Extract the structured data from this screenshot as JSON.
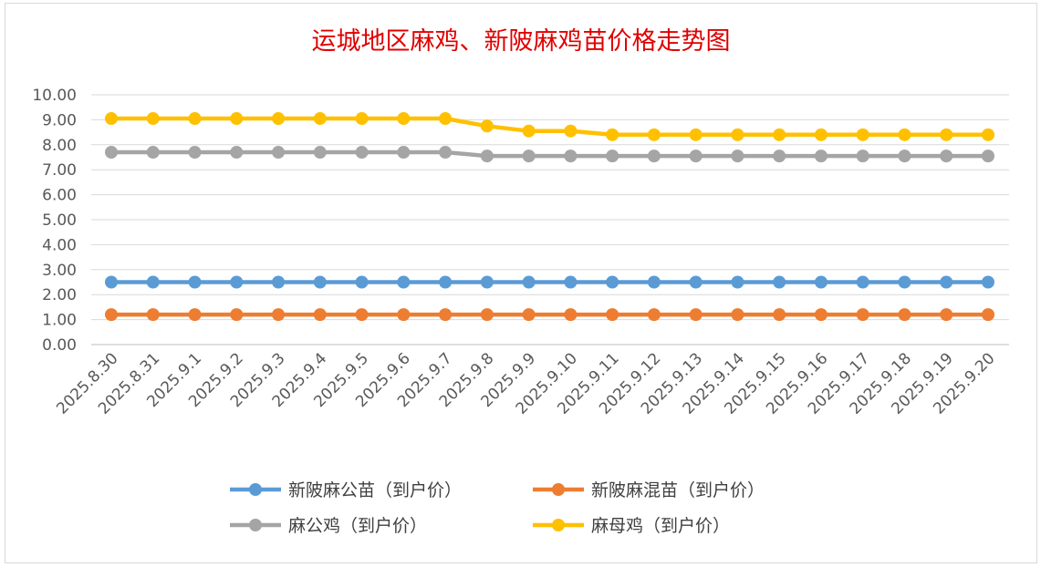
{
  "chart_data": {
    "type": "line",
    "title": "运城地区麻鸡、新陂麻鸡苗价格走势图",
    "xlabel": "",
    "ylabel": "",
    "ylim": [
      0,
      10
    ],
    "yticks": [
      "0.00",
      "1.00",
      "2.00",
      "3.00",
      "4.00",
      "5.00",
      "6.00",
      "7.00",
      "8.00",
      "9.00",
      "10.00"
    ],
    "grid": true,
    "legend_position": "bottom",
    "categories": [
      "2025.8.30",
      "2025.8.31",
      "2025.9.1",
      "2025.9.2",
      "2025.9.3",
      "2025.9.4",
      "2025.9.5",
      "2025.9.6",
      "2025.9.7",
      "2025.9.8",
      "2025.9.9",
      "2025.9.10",
      "2025.9.11",
      "2025.9.12",
      "2025.9.13",
      "2025.9.14",
      "2025.9.15",
      "2025.9.16",
      "2025.9.17",
      "2025.9.18",
      "2025.9.19",
      "2025.9.20"
    ],
    "series": [
      {
        "name": "新陂麻公苗（到户价）",
        "color": "#5b9bd5",
        "values": [
          2.5,
          2.5,
          2.5,
          2.5,
          2.5,
          2.5,
          2.5,
          2.5,
          2.5,
          2.5,
          2.5,
          2.5,
          2.5,
          2.5,
          2.5,
          2.5,
          2.5,
          2.5,
          2.5,
          2.5,
          2.5,
          2.5
        ]
      },
      {
        "name": "新陂麻混苗（到户价）",
        "color": "#ed7d31",
        "values": [
          1.2,
          1.2,
          1.2,
          1.2,
          1.2,
          1.2,
          1.2,
          1.2,
          1.2,
          1.2,
          1.2,
          1.2,
          1.2,
          1.2,
          1.2,
          1.2,
          1.2,
          1.2,
          1.2,
          1.2,
          1.2,
          1.2
        ]
      },
      {
        "name": "麻公鸡（到户价）",
        "color": "#a5a5a5",
        "values": [
          7.7,
          7.7,
          7.7,
          7.7,
          7.7,
          7.7,
          7.7,
          7.7,
          7.7,
          7.55,
          7.55,
          7.55,
          7.55,
          7.55,
          7.55,
          7.55,
          7.55,
          7.55,
          7.55,
          7.55,
          7.55,
          7.55
        ]
      },
      {
        "name": "麻母鸡（到户价）",
        "color": "#ffc000",
        "values": [
          9.05,
          9.05,
          9.05,
          9.05,
          9.05,
          9.05,
          9.05,
          9.05,
          9.05,
          8.75,
          8.55,
          8.55,
          8.4,
          8.4,
          8.4,
          8.4,
          8.4,
          8.4,
          8.4,
          8.4,
          8.4,
          8.4
        ]
      }
    ]
  }
}
